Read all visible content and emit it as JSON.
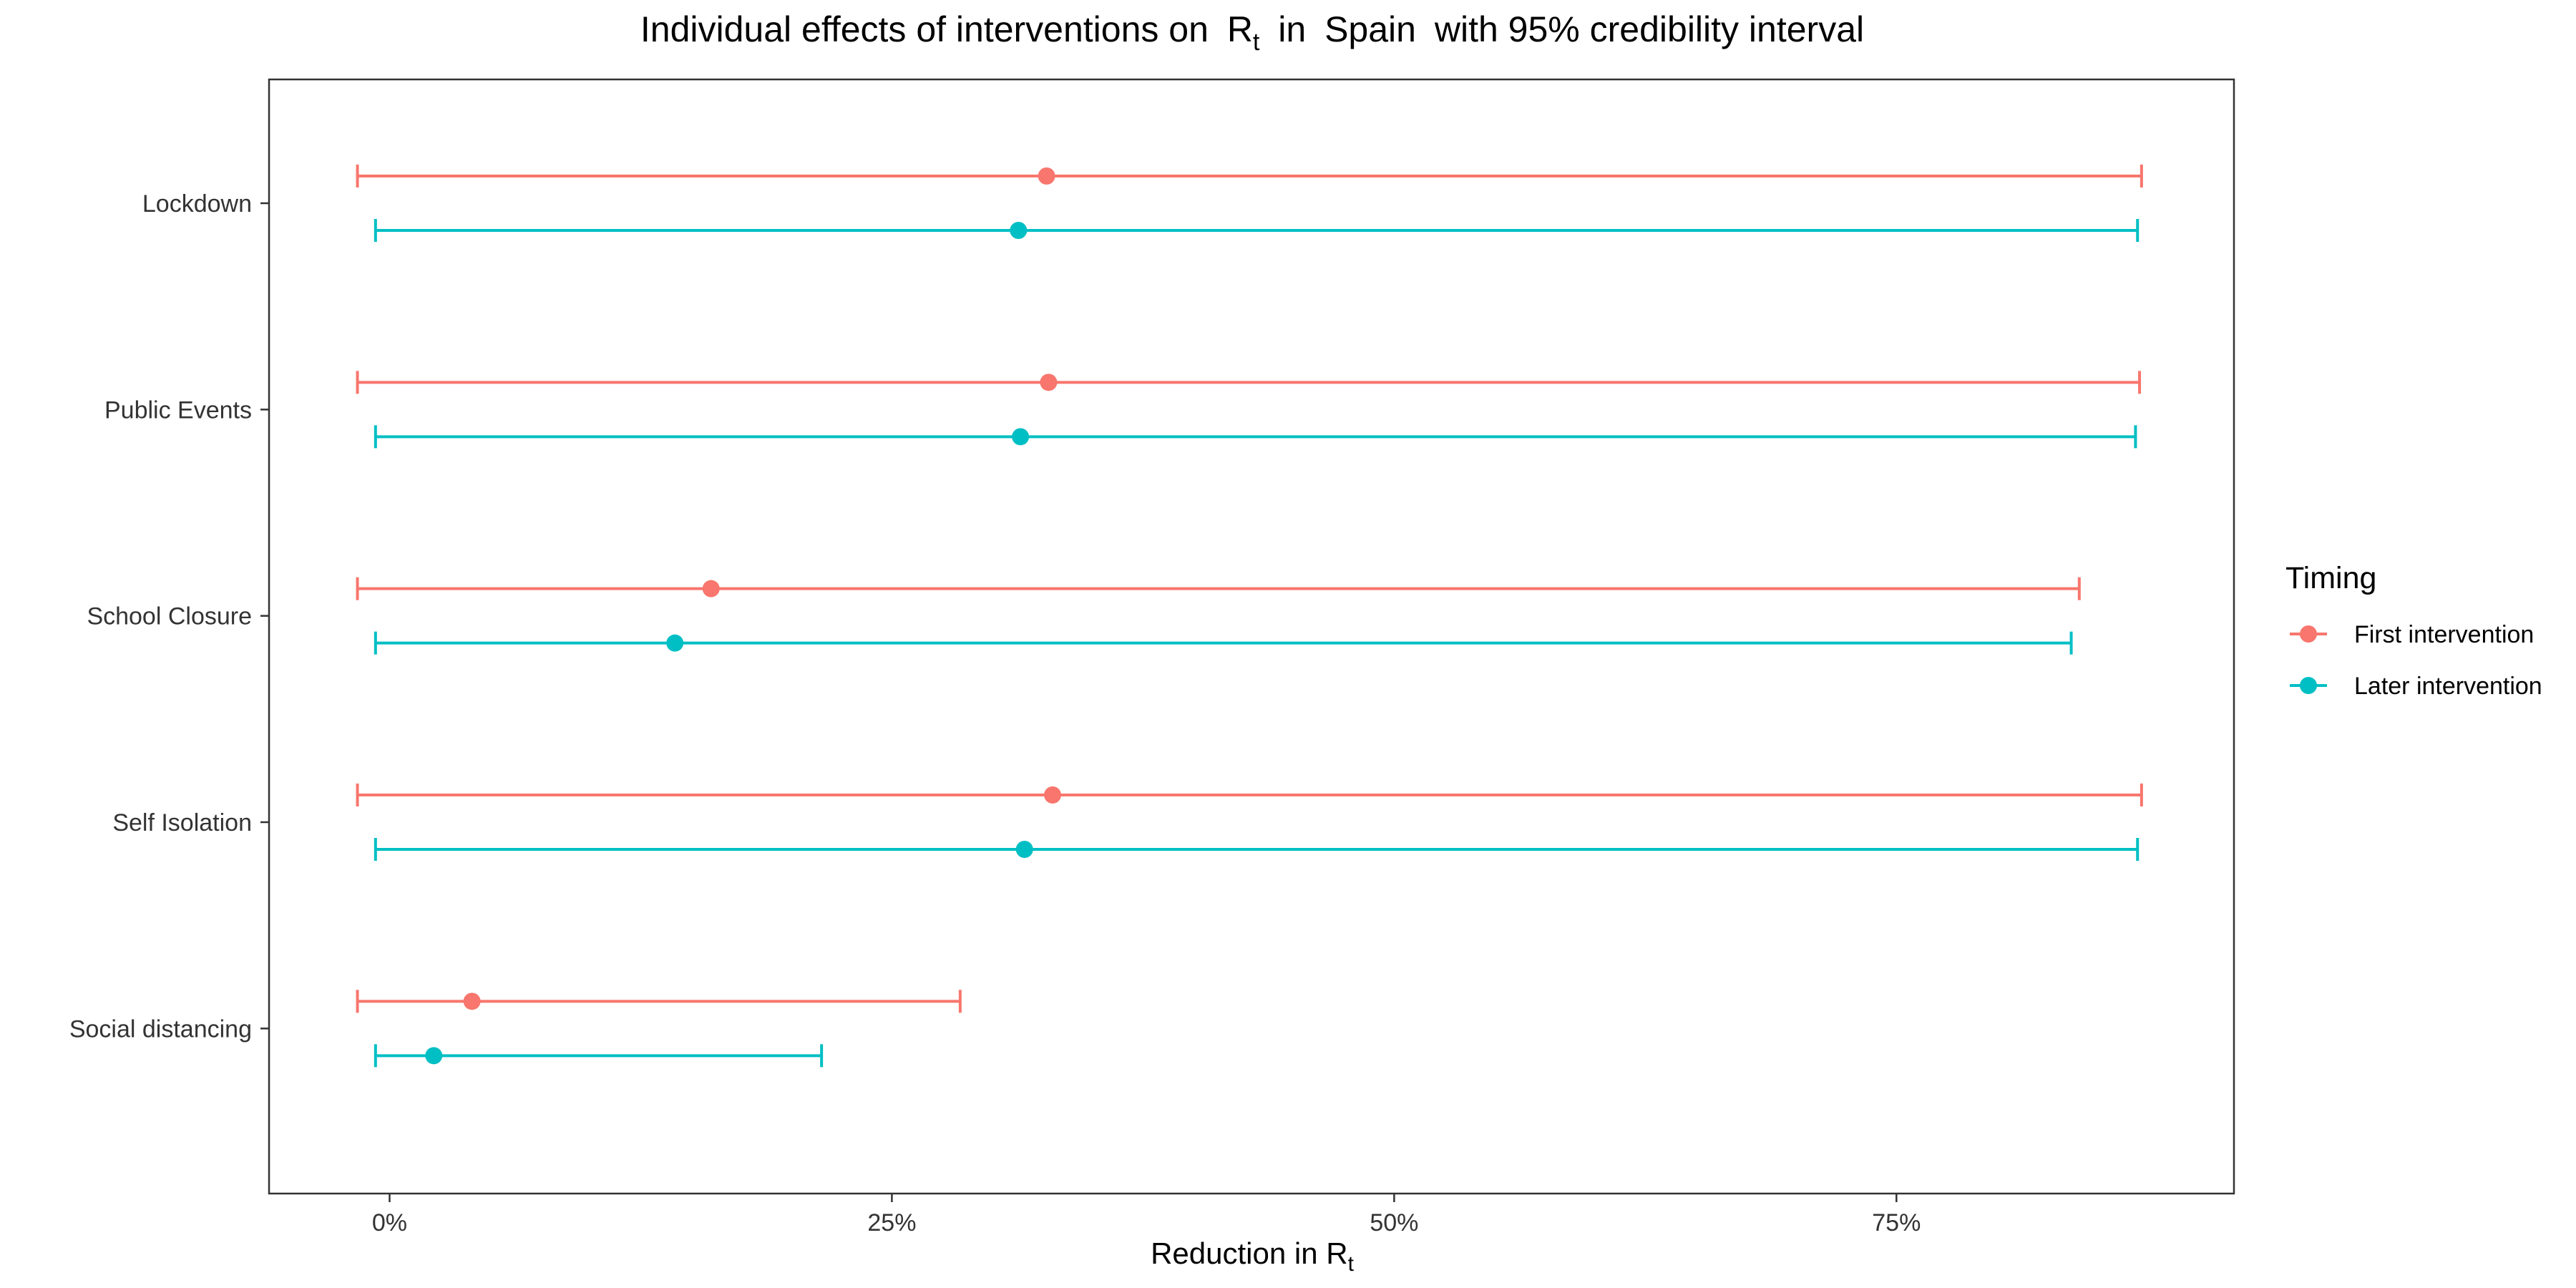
{
  "chart_data": {
    "type": "scatter",
    "title": {
      "prefix": "Individual effects of interventions on ",
      "symbol": "R",
      "subscript": "t",
      "middle": " in ",
      "country": "Spain",
      "suffix": " with 95% credibility interval"
    },
    "xlabel": {
      "text": "Reduction in ",
      "symbol": "R",
      "subscript": "t"
    },
    "xlim": [
      -0.06,
      0.918
    ],
    "x_ticks": [
      {
        "value": 0.0,
        "label": "0%"
      },
      {
        "value": 0.25,
        "label": "25%"
      },
      {
        "value": 0.5,
        "label": "50%"
      },
      {
        "value": 0.75,
        "label": "75%"
      }
    ],
    "categories": [
      "Lockdown",
      "Public Events",
      "School Closure",
      "Self Isolation",
      "Social distancing"
    ],
    "grid": false,
    "legend": {
      "title": "Timing",
      "position": "right"
    },
    "series": [
      {
        "name": "First intervention",
        "color": "#F8766D",
        "points": [
          {
            "category": "Lockdown",
            "x": 0.327,
            "lower": -0.016,
            "upper": 0.872
          },
          {
            "category": "Public Events",
            "x": 0.328,
            "lower": -0.016,
            "upper": 0.871
          },
          {
            "category": "School Closure",
            "x": 0.16,
            "lower": -0.016,
            "upper": 0.841
          },
          {
            "category": "Self Isolation",
            "x": 0.33,
            "lower": -0.016,
            "upper": 0.872
          },
          {
            "category": "Social distancing",
            "x": 0.041,
            "lower": -0.016,
            "upper": 0.284
          }
        ]
      },
      {
        "name": "Later intervention",
        "color": "#00BFC4",
        "points": [
          {
            "category": "Lockdown",
            "x": 0.313,
            "lower": -0.007,
            "upper": 0.87
          },
          {
            "category": "Public Events",
            "x": 0.314,
            "lower": -0.007,
            "upper": 0.869
          },
          {
            "category": "School Closure",
            "x": 0.142,
            "lower": -0.007,
            "upper": 0.837
          },
          {
            "category": "Self Isolation",
            "x": 0.316,
            "lower": -0.007,
            "upper": 0.87
          },
          {
            "category": "Social distancing",
            "x": 0.022,
            "lower": -0.007,
            "upper": 0.215
          }
        ]
      }
    ]
  }
}
